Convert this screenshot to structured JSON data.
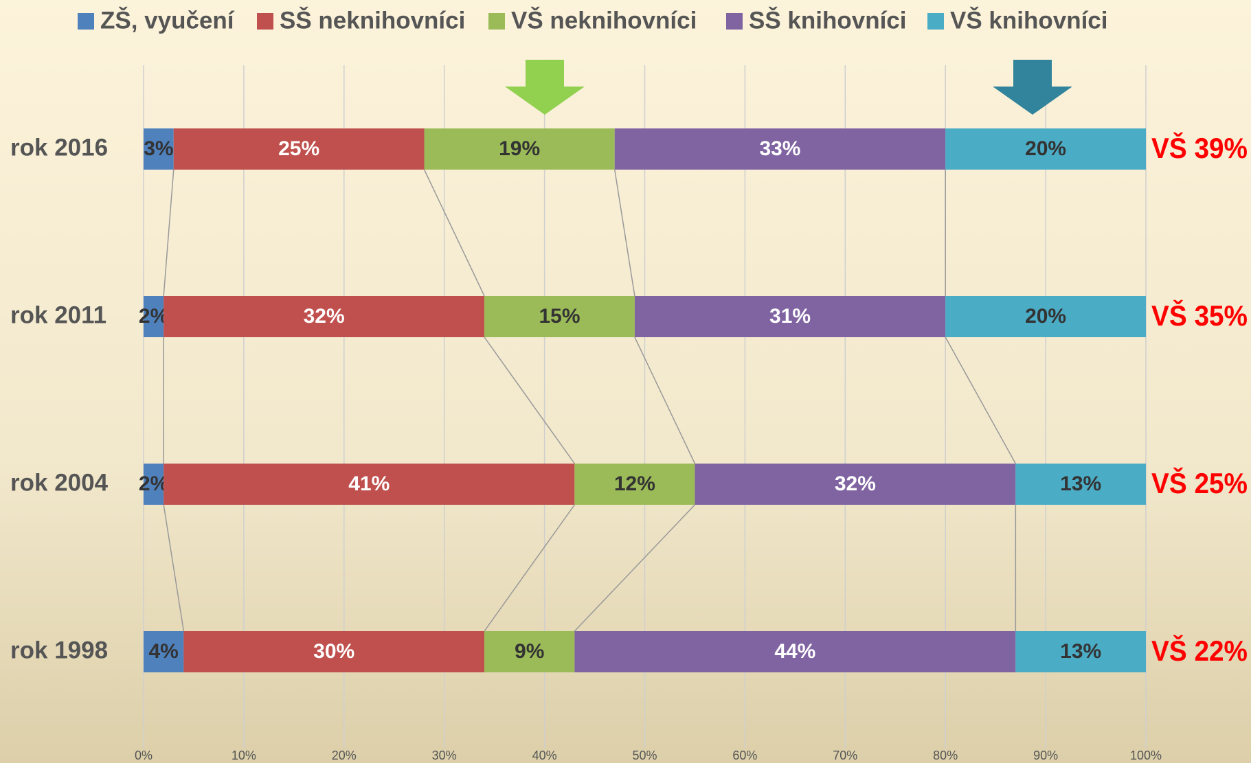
{
  "chart_data": {
    "type": "stacked-barh",
    "categories": [
      "rok 2016",
      "rok 2011",
      "rok 2004",
      "rok 1998"
    ],
    "series": [
      {
        "name": "ZŠ, vyučení",
        "color": "#4f81bd",
        "label_color": "#333333",
        "values": [
          3,
          2,
          2,
          4
        ],
        "value_labels": [
          "3%",
          "2%",
          "2%",
          "4%"
        ]
      },
      {
        "name": "SŠ neknihovníci",
        "color": "#c0504d",
        "label_color": "#ffffff",
        "values": [
          25,
          32,
          41,
          30
        ],
        "value_labels": [
          "25%",
          "32%",
          "41%",
          "30%"
        ]
      },
      {
        "name": "VŠ neknihovníci",
        "color": "#9bbb59",
        "label_color": "#333333",
        "values": [
          19,
          15,
          12,
          9
        ],
        "value_labels": [
          "19%",
          "15%",
          "12%",
          "9%"
        ]
      },
      {
        "name": "SŠ knihovníci",
        "color": "#8064a2",
        "label_color": "#ffffff",
        "values": [
          33,
          31,
          32,
          44
        ],
        "value_labels": [
          "33%",
          "31%",
          "32%",
          "44%"
        ]
      },
      {
        "name": "VŠ knihovníci",
        "color": "#4bacc6",
        "label_color": "#333333",
        "values": [
          20,
          20,
          13,
          13
        ],
        "value_labels": [
          "20%",
          "20%",
          "13%",
          "13%"
        ]
      }
    ],
    "annotations": [
      "VŠ 39%",
      "VŠ 35%",
      "VŠ 25%",
      "VŠ 22%"
    ],
    "xlim": [
      0,
      100
    ],
    "xticks": [
      {
        "value": 0,
        "label": "0%"
      },
      {
        "value": 10,
        "label": "10%"
      },
      {
        "value": 20,
        "label": "20%"
      },
      {
        "value": 30,
        "label": "30%"
      },
      {
        "value": 40,
        "label": "40%"
      },
      {
        "value": 50,
        "label": "50%"
      },
      {
        "value": 60,
        "label": "60%"
      },
      {
        "value": 70,
        "label": "70%"
      },
      {
        "value": 80,
        "label": "80%"
      },
      {
        "value": 90,
        "label": "90%"
      },
      {
        "value": 100,
        "label": "100%"
      }
    ],
    "grid": true,
    "legend": "top"
  }
}
